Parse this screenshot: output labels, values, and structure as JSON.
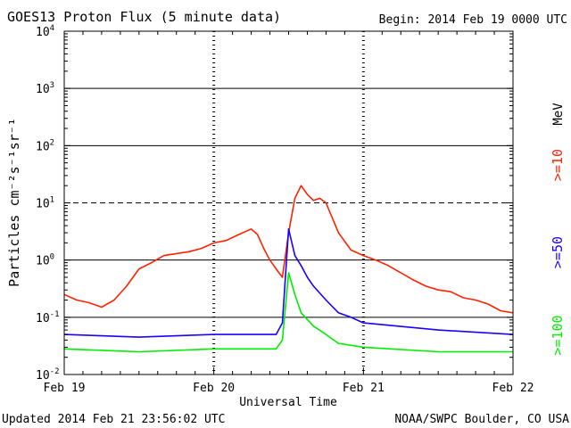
{
  "header": {
    "title": "GOES13 Proton Flux (5 minute data)",
    "begin": "Begin: 2014 Feb 19 0000 UTC"
  },
  "footer": {
    "updated": "Updated 2014 Feb 21 23:56:02 UTC",
    "credit": "NOAA/SWPC Boulder, CO USA"
  },
  "colors": {
    "ge10": "#ff2200",
    "ge50": "#1a00ff",
    "ge100": "#00ee00",
    "frame": "#000000"
  },
  "chart_data": {
    "type": "line",
    "title": "GOES13 Proton Flux (5 minute data)",
    "xlabel": "Universal Time",
    "ylabel": "Particles cm⁻²s⁻¹sr⁻¹",
    "y_scale": "log",
    "ylim": [
      0.01,
      10000
    ],
    "y_ticks": [
      {
        "value": 0.01,
        "base": "10",
        "exp": "-2"
      },
      {
        "value": 0.1,
        "base": "10",
        "exp": "-1"
      },
      {
        "value": 1,
        "base": "10",
        "exp": "0"
      },
      {
        "value": 10,
        "base": "10",
        "exp": "1"
      },
      {
        "value": 100,
        "base": "10",
        "exp": "2"
      },
      {
        "value": 1000,
        "base": "10",
        "exp": "3"
      },
      {
        "value": 10000,
        "base": "10",
        "exp": "4"
      }
    ],
    "x_ticks": [
      "Feb 19",
      "Feb 20",
      "Feb 21",
      "Feb 22"
    ],
    "xlim": [
      "2014-02-19T00:00",
      "2014-02-22T00:00"
    ],
    "unit_label": "MeV",
    "legend": [
      {
        "name": ">=10",
        "color_key": "ge10"
      },
      {
        "name": ">=50",
        "color_key": "ge50"
      },
      {
        "name": ">=100",
        "color_key": "ge100"
      }
    ],
    "grid": "solid horizontal lines at 10^-1, 10^0, 10^2, 10^3; dashed at 10^1",
    "series": [
      {
        "name": ">=10",
        "x": [
          "2014-02-19T00:00",
          "2014-02-19T02:00",
          "2014-02-19T04:00",
          "2014-02-19T06:00",
          "2014-02-19T08:00",
          "2014-02-19T10:00",
          "2014-02-19T12:00",
          "2014-02-19T14:00",
          "2014-02-19T16:00",
          "2014-02-19T18:00",
          "2014-02-19T20:00",
          "2014-02-19T22:00",
          "2014-02-20T00:00",
          "2014-02-20T02:00",
          "2014-02-20T04:00",
          "2014-02-20T06:00",
          "2014-02-20T07:00",
          "2014-02-20T08:00",
          "2014-02-20T09:00",
          "2014-02-20T10:00",
          "2014-02-20T11:00",
          "2014-02-20T12:00",
          "2014-02-20T13:00",
          "2014-02-20T14:00",
          "2014-02-20T15:00",
          "2014-02-20T16:00",
          "2014-02-20T17:00",
          "2014-02-20T18:00",
          "2014-02-20T20:00",
          "2014-02-20T22:00",
          "2014-02-21T00:00",
          "2014-02-21T02:00",
          "2014-02-21T04:00",
          "2014-02-21T06:00",
          "2014-02-21T08:00",
          "2014-02-21T10:00",
          "2014-02-21T12:00",
          "2014-02-21T14:00",
          "2014-02-21T16:00",
          "2014-02-21T18:00",
          "2014-02-21T20:00",
          "2014-02-21T22:00",
          "2014-02-22T00:00"
        ],
        "values": [
          0.25,
          0.2,
          0.18,
          0.15,
          0.2,
          0.35,
          0.7,
          0.9,
          1.2,
          1.3,
          1.4,
          1.6,
          2.0,
          2.2,
          2.8,
          3.5,
          2.8,
          1.6,
          1.0,
          0.7,
          0.5,
          3.0,
          12,
          20,
          14,
          11,
          12,
          10,
          3.0,
          1.5,
          1.2,
          1.0,
          0.8,
          0.6,
          0.45,
          0.35,
          0.3,
          0.28,
          0.22,
          0.2,
          0.17,
          0.13,
          0.12
        ]
      },
      {
        "name": ">=50",
        "x": [
          "2014-02-19T00:00",
          "2014-02-19T12:00",
          "2014-02-20T00:00",
          "2014-02-20T10:00",
          "2014-02-20T11:00",
          "2014-02-20T12:00",
          "2014-02-20T13:00",
          "2014-02-20T14:00",
          "2014-02-20T15:00",
          "2014-02-20T16:00",
          "2014-02-20T18:00",
          "2014-02-20T20:00",
          "2014-02-20T22:00",
          "2014-02-21T00:00",
          "2014-02-21T12:00",
          "2014-02-22T00:00"
        ],
        "values": [
          0.05,
          0.045,
          0.05,
          0.05,
          0.08,
          3.5,
          1.2,
          0.8,
          0.5,
          0.35,
          0.2,
          0.12,
          0.1,
          0.08,
          0.06,
          0.05
        ]
      },
      {
        "name": ">=100",
        "x": [
          "2014-02-19T00:00",
          "2014-02-19T12:00",
          "2014-02-20T00:00",
          "2014-02-20T10:00",
          "2014-02-20T11:00",
          "2014-02-20T12:00",
          "2014-02-20T13:00",
          "2014-02-20T14:00",
          "2014-02-20T16:00",
          "2014-02-20T18:00",
          "2014-02-20T20:00",
          "2014-02-21T00:00",
          "2014-02-21T12:00",
          "2014-02-22T00:00"
        ],
        "values": [
          0.028,
          0.025,
          0.028,
          0.028,
          0.04,
          0.6,
          0.25,
          0.12,
          0.07,
          0.05,
          0.035,
          0.03,
          0.025,
          0.025
        ]
      }
    ]
  }
}
